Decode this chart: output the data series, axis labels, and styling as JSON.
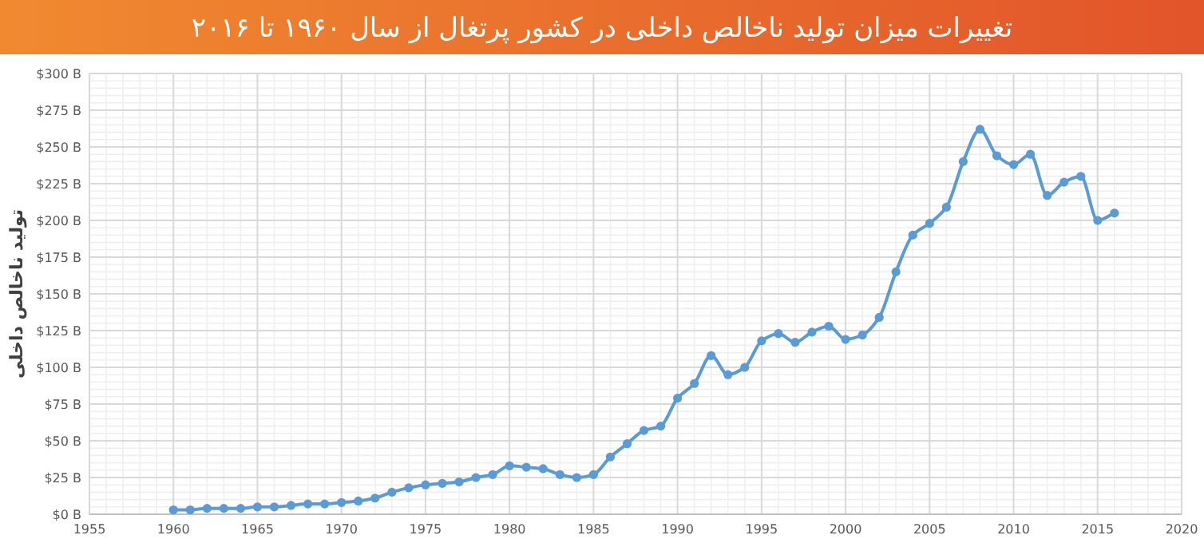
{
  "chart_data": {
    "type": "line",
    "title": "تغییرات میزان تولید ناخالص داخلی در کشور پرتغال از سال ۱۹۶۰ تا ۲۰۱۶",
    "ylabel": "تولید ناخالص داخلی",
    "x": [
      1960,
      1961,
      1962,
      1963,
      1964,
      1965,
      1966,
      1967,
      1968,
      1969,
      1970,
      1971,
      1972,
      1973,
      1974,
      1975,
      1976,
      1977,
      1978,
      1979,
      1980,
      1981,
      1982,
      1983,
      1984,
      1985,
      1986,
      1987,
      1988,
      1989,
      1990,
      1991,
      1992,
      1993,
      1994,
      1995,
      1996,
      1997,
      1998,
      1999,
      2000,
      2001,
      2002,
      2003,
      2004,
      2005,
      2006,
      2007,
      2008,
      2009,
      2010,
      2011,
      2012,
      2013,
      2014,
      2015,
      2016
    ],
    "series": [
      {
        "color": "#5b9bd5",
        "values": [
          3,
          3,
          4,
          4,
          4,
          5,
          5,
          6,
          7,
          7,
          8,
          9,
          11,
          15,
          18,
          20,
          21,
          22,
          25,
          27,
          33,
          32,
          31,
          27,
          25,
          27,
          39,
          48,
          57,
          60,
          79,
          89,
          108,
          95,
          100,
          118,
          123,
          117,
          124,
          128,
          119,
          122,
          134,
          165,
          190,
          198,
          209,
          240,
          262,
          244,
          238,
          245,
          217,
          226,
          230,
          200,
          205
        ]
      }
    ],
    "xlim": [
      1955,
      2020
    ],
    "xticks": [
      1955,
      1960,
      1965,
      1970,
      1975,
      1980,
      1985,
      1990,
      1995,
      2000,
      2005,
      2010,
      2015,
      2020
    ],
    "ylim": [
      0,
      300
    ],
    "yticks": [
      {
        "value": 0,
        "label": "$0 B"
      },
      {
        "value": 25,
        "label": "$25 B"
      },
      {
        "value": 50,
        "label": "$50 B"
      },
      {
        "value": 75,
        "label": "$75 B"
      },
      {
        "value": 100,
        "label": "$100 B"
      },
      {
        "value": 125,
        "label": "$125 B"
      },
      {
        "value": 150,
        "label": "$150 B"
      },
      {
        "value": 175,
        "label": "$175 B"
      },
      {
        "value": 200,
        "label": "$200 B"
      },
      {
        "value": 225,
        "label": "$225 B"
      },
      {
        "value": 250,
        "label": "$250 B"
      },
      {
        "value": 275,
        "label": "$275 B"
      },
      {
        "value": 300,
        "label": "$300 B"
      }
    ],
    "grid": true,
    "marker": "circle",
    "line_style": "solid"
  }
}
